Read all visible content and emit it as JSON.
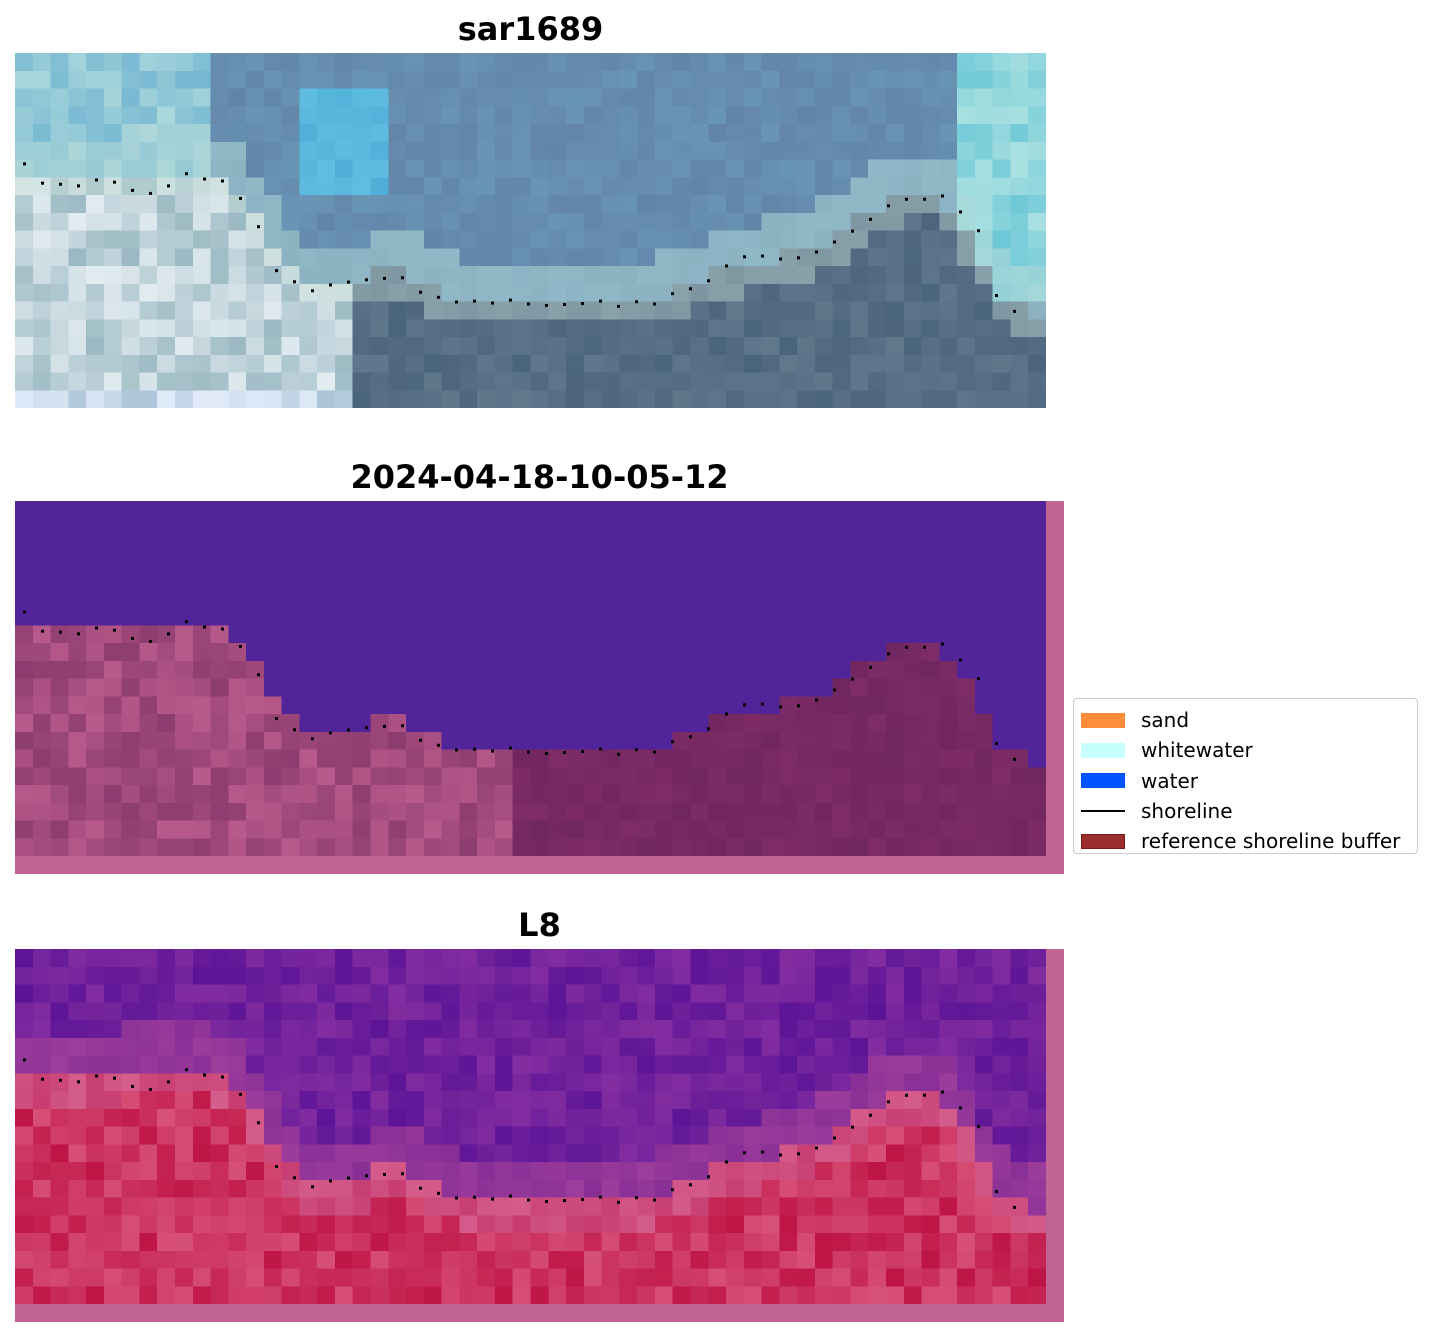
{
  "panels": [
    {
      "title": "sar1689",
      "style": "rgb"
    },
    {
      "title": "2024-04-18-10-05-12",
      "style": "classified"
    },
    {
      "title": "L8",
      "style": "index"
    }
  ],
  "legend": {
    "items": [
      {
        "label": "sand",
        "kind": "patch",
        "color": "#ff8c3a"
      },
      {
        "label": "whitewater",
        "kind": "patch",
        "color": "#c8ffff"
      },
      {
        "label": "water",
        "kind": "patch",
        "color": "#0055ff"
      },
      {
        "label": "shoreline",
        "kind": "line",
        "color": "#000000"
      },
      {
        "label": "reference shoreline buffer",
        "kind": "patch",
        "color": "#9b2d2d",
        "edge": "#7a1a1a"
      }
    ]
  },
  "colors": {
    "water_class": "#522499",
    "buffer_overlay": "#c06495",
    "shoreline_dots": "#000000"
  }
}
